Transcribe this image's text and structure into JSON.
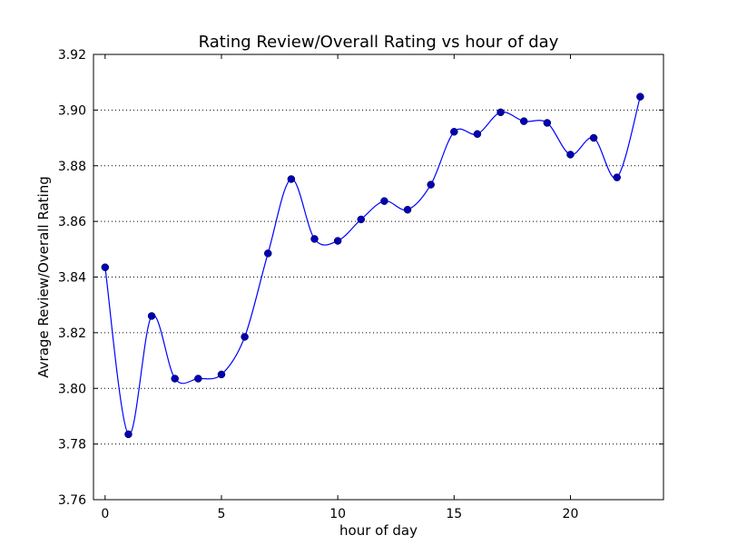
{
  "chart_data": {
    "type": "line",
    "title": "Rating Review/Overall Rating vs hour of day",
    "xlabel": "hour of day",
    "ylabel": "Avrage Review/Overall Rating",
    "xlim": [
      -0.5,
      24
    ],
    "ylim": [
      3.76,
      3.92
    ],
    "xticks": [
      0,
      5,
      10,
      15,
      20
    ],
    "xtick_labels": [
      "0",
      "5",
      "10",
      "15",
      "20"
    ],
    "yticks": [
      3.76,
      3.78,
      3.8,
      3.82,
      3.84,
      3.86,
      3.88,
      3.9,
      3.92
    ],
    "ytick_labels": [
      "3.76",
      "3.78",
      "3.80",
      "3.82",
      "3.84",
      "3.86",
      "3.88",
      "3.90",
      "3.92"
    ],
    "grid": "horizontal dotted",
    "line_color": "#0000ff",
    "marker_color": "#0000b4",
    "smooth": true,
    "series": [
      {
        "x": [
          0,
          1,
          2,
          3,
          4,
          5,
          6,
          7,
          8,
          9,
          10,
          11,
          12,
          13,
          14,
          15,
          16,
          17,
          18,
          19,
          20,
          21,
          22,
          23
        ],
        "values": [
          3.8435,
          3.7835,
          3.826,
          3.8035,
          3.8035,
          3.805,
          3.8185,
          3.8485,
          3.8752,
          3.8537,
          3.853,
          3.8607,
          3.8673,
          3.8642,
          3.8732,
          3.8922,
          3.8914,
          3.8992,
          3.896,
          3.8954,
          3.884,
          3.89,
          3.8758,
          3.9048
        ]
      }
    ]
  }
}
